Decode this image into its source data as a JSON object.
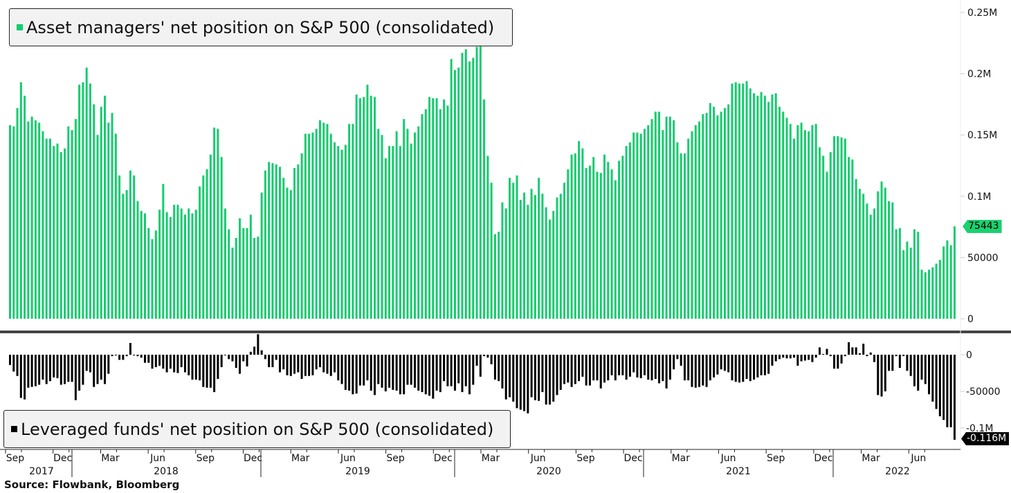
{
  "legend_top": {
    "label": "Asset managers' net position on S&P 500 (consolidated)",
    "color": "#14cc6e"
  },
  "legend_bottom": {
    "label": "Leveraged funds' net position on S&P 500 (consolidated)",
    "color": "#000000"
  },
  "source": "Source: Flowbank, Bloomberg",
  "last_value_tags": {
    "asset_managers": "75443",
    "leveraged_funds": "-0.116M"
  },
  "chart_data": [
    {
      "type": "bar",
      "name": "Asset managers' net position on S&P 500 (consolidated)",
      "color": "#14cc6e",
      "ylim": [
        0,
        250000
      ],
      "yticks": [
        "0",
        "50000",
        "0.1M",
        "0.15M",
        "0.2M",
        "0.25M"
      ],
      "ytick_values": [
        0,
        50000,
        100000,
        150000,
        200000,
        250000
      ],
      "axis_side": "right",
      "grid": false,
      "values": [
        158000,
        157000,
        172000,
        193000,
        182000,
        161000,
        165000,
        162000,
        160000,
        153000,
        147000,
        147000,
        141000,
        143000,
        136000,
        139000,
        157000,
        154000,
        163000,
        191000,
        193000,
        205000,
        192000,
        175000,
        150000,
        173000,
        182000,
        160000,
        168000,
        151000,
        117000,
        102000,
        105000,
        121000,
        117000,
        96000,
        88000,
        86000,
        74000,
        65000,
        72000,
        89000,
        110000,
        87000,
        83000,
        93000,
        93000,
        90000,
        85000,
        90000,
        86000,
        89000,
        108000,
        117000,
        122000,
        134000,
        156000,
        155000,
        132000,
        90000,
        73000,
        58000,
        66000,
        82000,
        74000,
        74000,
        85000,
        66000,
        67000,
        103000,
        121000,
        128000,
        127000,
        126000,
        124000,
        115000,
        107000,
        105000,
        123000,
        126000,
        135000,
        151000,
        151000,
        152000,
        155000,
        162000,
        160000,
        159000,
        151000,
        144000,
        141000,
        138000,
        142000,
        159000,
        159000,
        183000,
        180000,
        181000,
        191000,
        182000,
        181000,
        155000,
        150000,
        131000,
        141000,
        141000,
        153000,
        141000,
        163000,
        155000,
        143000,
        152000,
        157000,
        167000,
        171000,
        181000,
        180000,
        180000,
        171000,
        179000,
        174000,
        212000,
        203000,
        205000,
        217000,
        220000,
        210000,
        213000,
        222000,
        227000,
        179000,
        133000,
        111000,
        69000,
        71000,
        95000,
        90000,
        115000,
        111000,
        117000,
        97000,
        103000,
        93000,
        106000,
        101000,
        115000,
        102000,
        91000,
        81000,
        88000,
        99000,
        102000,
        111000,
        122000,
        134000,
        135000,
        145000,
        139000,
        123000,
        125000,
        132000,
        120000,
        119000,
        134000,
        128000,
        122000,
        113000,
        129000,
        133000,
        141000,
        144000,
        152000,
        152000,
        151000,
        155000,
        158000,
        163000,
        169000,
        169000,
        154000,
        165000,
        165000,
        162000,
        144000,
        135000,
        135000,
        147000,
        153000,
        158000,
        161000,
        167000,
        168000,
        176000,
        173000,
        166000,
        169000,
        172000,
        175000,
        192000,
        193000,
        192000,
        192000,
        194000,
        188000,
        184000,
        182000,
        185000,
        182000,
        177000,
        183000,
        184000,
        173000,
        169000,
        164000,
        159000,
        147000,
        158000,
        160000,
        154000,
        153000,
        158000,
        159000,
        140000,
        133000,
        120000,
        136000,
        149000,
        149000,
        148000,
        147000,
        132000,
        130000,
        114000,
        106000,
        102000,
        94000,
        85000,
        90000,
        104000,
        112000,
        107000,
        96000,
        95000,
        73000,
        74000,
        56000,
        63000,
        58000,
        73000,
        71000,
        40000,
        38000,
        40000,
        42000,
        45000,
        48000,
        59000,
        64000,
        60000,
        75443
      ]
    },
    {
      "type": "bar",
      "name": "Leveraged funds' net position on S&P 500 (consolidated)",
      "color": "#000000",
      "ylim": [
        -120000,
        25000
      ],
      "yticks": [
        "0",
        "-50000",
        "-0.1M"
      ],
      "ytick_values": [
        0,
        -50000,
        -100000
      ],
      "axis_side": "right",
      "grid": false,
      "values": [
        -14000,
        -23000,
        -29000,
        -59000,
        -61000,
        -45000,
        -44000,
        -43000,
        -41000,
        -34000,
        -40000,
        -36000,
        -31000,
        -32000,
        -41000,
        -40000,
        -37000,
        -37000,
        -62000,
        -49000,
        -41000,
        -22000,
        -24000,
        -44000,
        -40000,
        -34000,
        -40000,
        -26000,
        -2000,
        -1000,
        -7000,
        -7000,
        -2000,
        16000,
        -1000,
        -2000,
        -4000,
        -11000,
        -11000,
        -19000,
        -17000,
        -15000,
        -19000,
        -24000,
        -19000,
        -24000,
        -25000,
        -17000,
        -24000,
        -28000,
        -34000,
        -34000,
        -35000,
        -44000,
        -45000,
        -45000,
        -51000,
        -33000,
        -17000,
        0,
        -6000,
        -9000,
        -18000,
        -26000,
        -9000,
        -16000,
        4000,
        11000,
        28000,
        6000,
        -6000,
        -17000,
        -17000,
        -7000,
        -24000,
        -20000,
        -28000,
        -29000,
        -26000,
        -24000,
        -33000,
        -29000,
        -29000,
        -28000,
        -20000,
        -17000,
        -24000,
        -26000,
        -29000,
        -24000,
        -35000,
        -40000,
        -48000,
        -49000,
        -54000,
        -53000,
        -42000,
        -42000,
        -35000,
        -49000,
        -55000,
        -40000,
        -45000,
        -50000,
        -45000,
        -48000,
        -49000,
        -54000,
        -54000,
        -41000,
        -41000,
        -45000,
        -49000,
        -51000,
        -54000,
        -56000,
        -60000,
        -49000,
        -51000,
        -36000,
        -43000,
        -43000,
        -49000,
        -39000,
        -51000,
        -43000,
        -54000,
        -41000,
        -15000,
        -30000,
        -2000,
        -4000,
        -13000,
        -34000,
        -36000,
        -46000,
        -61000,
        -58000,
        -64000,
        -73000,
        -75000,
        -77000,
        -80000,
        -58000,
        -62000,
        -63000,
        -51000,
        -68000,
        -68000,
        -64000,
        -55000,
        -48000,
        -40000,
        -38000,
        -44000,
        -40000,
        -36000,
        -30000,
        -42000,
        -42000,
        -35000,
        -35000,
        -46000,
        -38000,
        -35000,
        -28000,
        -35000,
        -28000,
        -28000,
        -34000,
        -30000,
        -24000,
        -31000,
        -32000,
        -28000,
        -34000,
        -35000,
        -33000,
        -39000,
        -36000,
        -46000,
        -34000,
        -20000,
        -6000,
        -15000,
        -35000,
        -35000,
        -44000,
        -45000,
        -44000,
        -42000,
        -44000,
        -35000,
        -31000,
        -27000,
        -20000,
        -22000,
        -24000,
        -35000,
        -37000,
        -38000,
        -37000,
        -33000,
        -36000,
        -34000,
        -31000,
        -28000,
        -28000,
        -26000,
        -15000,
        -9000,
        -6000,
        -4000,
        -5000,
        -5000,
        -4000,
        -15000,
        -9000,
        -8000,
        -7000,
        -10000,
        -4000,
        10000,
        1000,
        8000,
        -2000,
        -19000,
        -19000,
        -12000,
        -2000,
        17000,
        10000,
        10000,
        2000,
        15000,
        -2000,
        3000,
        -10000,
        -55000,
        -57000,
        -50000,
        -22000,
        -22000,
        -2000,
        -18000,
        -2000,
        -22000,
        -29000,
        -43000,
        -49000,
        -34000,
        -40000,
        -54000,
        -64000,
        -74000,
        -84000,
        -89000,
        -99000,
        -99000,
        -116000
      ]
    }
  ],
  "x_axis": {
    "month_ticks": [
      "Sep",
      "Dec",
      "Mar",
      "Jun",
      "Sep",
      "Dec",
      "Mar",
      "Jun",
      "Sep",
      "Dec",
      "Mar",
      "Jun",
      "Sep",
      "Dec",
      "Mar",
      "Jun",
      "Sep",
      "Dec",
      "Mar",
      "Jun"
    ],
    "years": [
      "2017",
      "2018",
      "2019",
      "2020",
      "2021",
      "2022"
    ]
  }
}
